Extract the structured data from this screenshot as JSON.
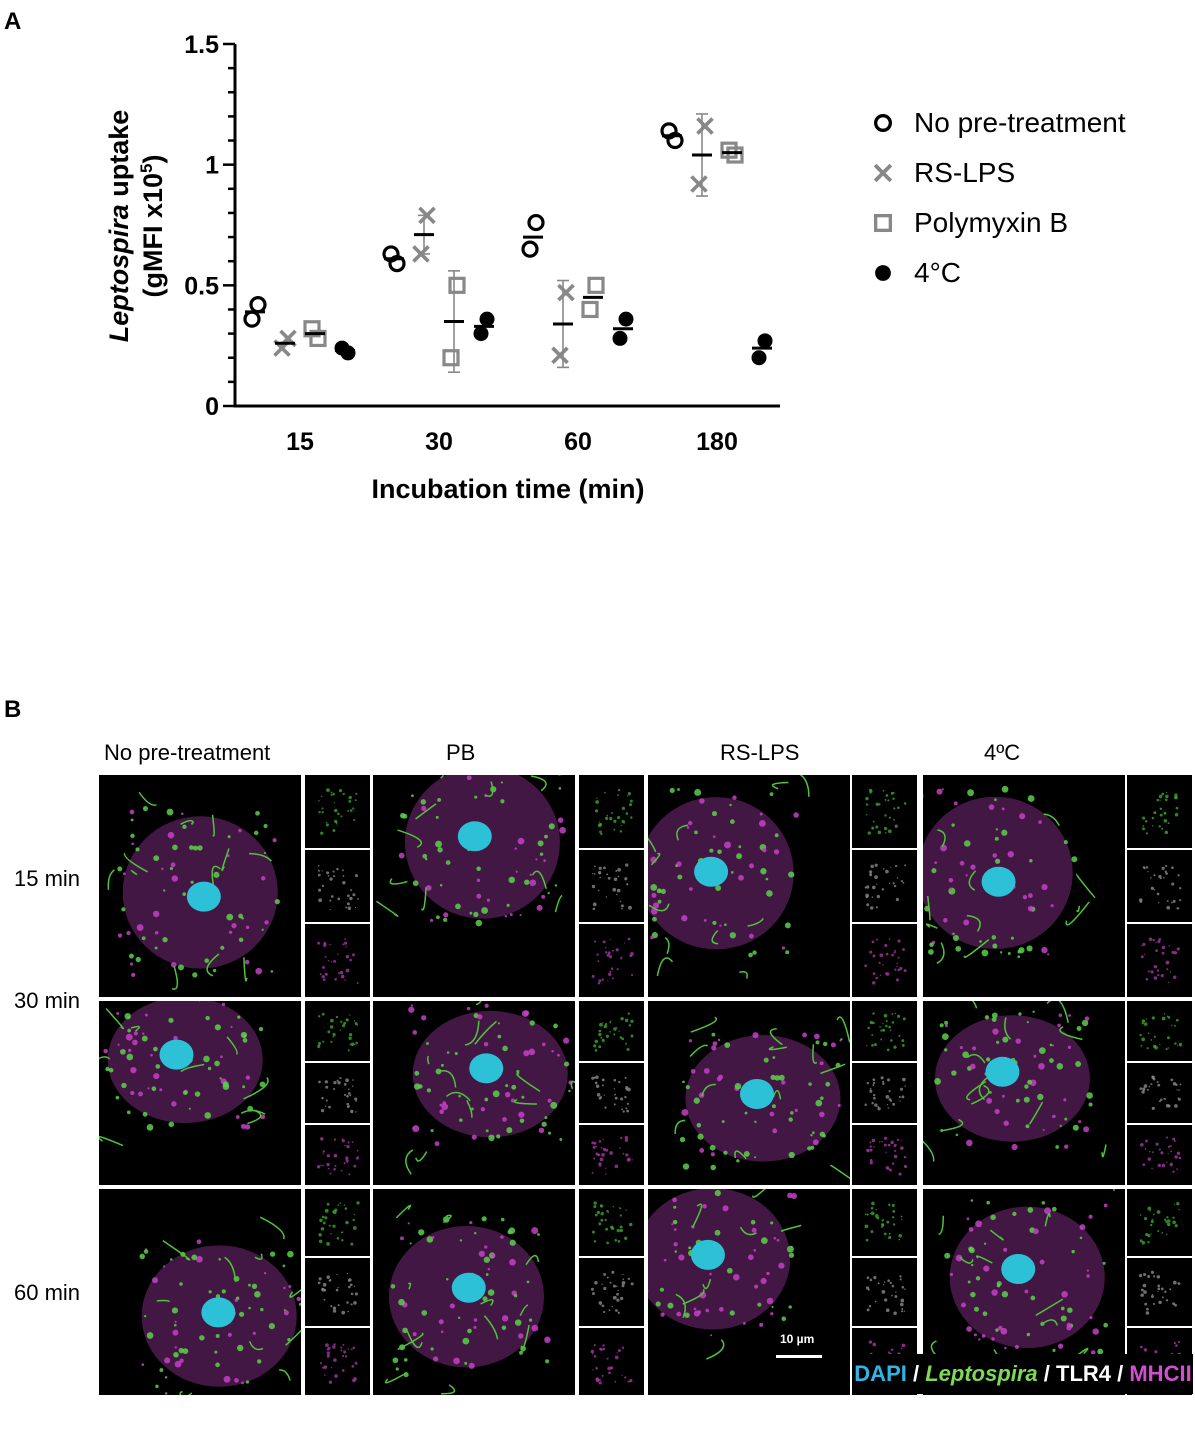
{
  "panel_a": {
    "letter": "A",
    "legend": [
      {
        "name": "No pre-treatment",
        "marker": "open-circle",
        "color": "#000000"
      },
      {
        "name": "RS-LPS",
        "marker": "x",
        "color": "#888888"
      },
      {
        "name": "Polymyxin B",
        "marker": "open-square",
        "color": "#888888"
      },
      {
        "name": "4°C",
        "marker": "filled-circle",
        "color": "#000000"
      }
    ]
  },
  "chart_data": {
    "type": "scatter",
    "title": "",
    "xlabel": "Incubation time (min)",
    "ylabel_italic": "Leptospira",
    "ylabel_rest": " uptake",
    "ylabel_line2": "(gMFI x10",
    "ylabel_sup": "5",
    "ylabel_close": ")",
    "categories": [
      "15",
      "30",
      "60",
      "180"
    ],
    "ylim": [
      0,
      1.5
    ],
    "yticks": [
      "0",
      "0.5",
      "1",
      "1.5"
    ],
    "ytick_values": [
      0,
      0.5,
      1,
      1.5
    ],
    "series": [
      {
        "name": "No pre-treatment",
        "points": [
          [
            0.42,
            0.36
          ],
          [
            0.59,
            0.63
          ],
          [
            0.76,
            0.65
          ],
          [
            1.1,
            1.14
          ]
        ],
        "mean": [
          0.39,
          0.61,
          0.7,
          1.12
        ],
        "sd": [
          0,
          0,
          0,
          0
        ]
      },
      {
        "name": "RS-LPS",
        "points": [
          [
            0.28,
            0.24
          ],
          [
            0.79,
            0.63
          ],
          [
            0.47,
            0.21
          ],
          [
            1.16,
            0.92
          ]
        ],
        "mean": [
          0.26,
          0.71,
          0.34,
          1.04
        ],
        "sd": [
          0,
          0.08,
          0.18,
          0.17
        ]
      },
      {
        "name": "Polymyxin B",
        "points": [
          [
            0.28,
            0.32
          ],
          [
            0.5,
            0.2
          ],
          [
            0.5,
            0.4
          ],
          [
            1.04,
            1.06
          ]
        ],
        "mean": [
          0.3,
          0.35,
          0.45,
          1.05
        ],
        "sd": [
          0,
          0.21,
          0,
          0
        ]
      },
      {
        "name": "4°C",
        "points": [
          [
            0.22,
            0.24
          ],
          [
            0.36,
            0.3
          ],
          [
            0.36,
            0.28
          ],
          [
            0.27,
            0.2
          ]
        ],
        "mean": [
          0.23,
          0.33,
          0.32,
          0.24
        ],
        "sd": [
          0,
          0,
          0,
          0
        ]
      }
    ],
    "grid": false,
    "legend_position": "right"
  },
  "panel_b": {
    "letter": "B",
    "columns": [
      "No pre-treatment",
      "PB",
      "RS-LPS",
      "4ºC"
    ],
    "rows": [
      "15 min",
      "30 min",
      "60 min"
    ],
    "scale_bar": "10 µm",
    "channel_legend": [
      {
        "text": "DAPI",
        "color": "#2fb6e8",
        "italic": false
      },
      {
        "text": " / ",
        "color": "#ffffff",
        "italic": false
      },
      {
        "text": "Leptospira",
        "color": "#7ed957",
        "italic": true
      },
      {
        "text": " / TLR4 / ",
        "color": "#ffffff",
        "italic": false
      },
      {
        "text": "MHCII",
        "color": "#d14fd1",
        "italic": false
      }
    ]
  }
}
